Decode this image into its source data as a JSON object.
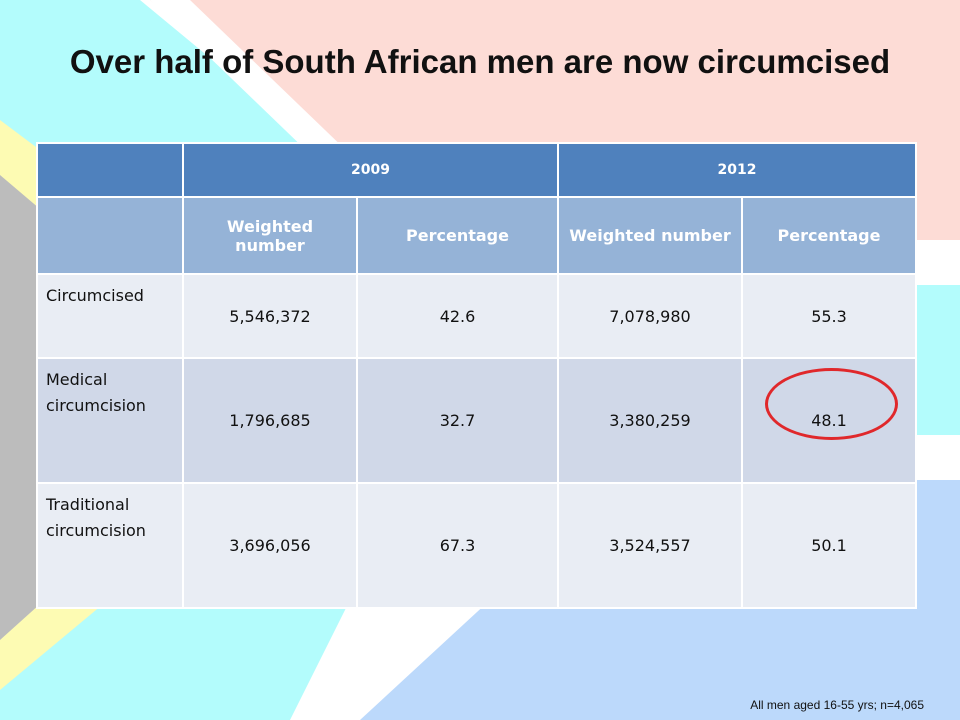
{
  "slide": {
    "title": "Over half of South African men are now circumcised",
    "footnote": "All men aged 16-55 yrs; n=4,065"
  },
  "table": {
    "years": [
      "2009",
      "2012"
    ],
    "subheaders": [
      "Weighted number",
      "Percentage",
      "Weighted number",
      "Percentage"
    ],
    "rows": [
      {
        "label": "Circumcised",
        "values": [
          "5,546,372",
          "42.6",
          "7,078,980",
          "55.3"
        ]
      },
      {
        "label": "Medical circumcision",
        "values": [
          "1,796,685",
          "32.7",
          "3,380,259",
          "48.1"
        ]
      },
      {
        "label": "Traditional circumcision",
        "values": [
          "3,696,056",
          "67.3",
          "3,524,557",
          "50.1"
        ]
      }
    ],
    "highlighted_cell": {
      "row": 1,
      "column": 3,
      "color": "#e0282b"
    }
  },
  "colors": {
    "header_year": "#4f81bd",
    "header_sub": "#95b3d7",
    "row_light": "#e9edf4",
    "row_dark": "#d0d8e8",
    "bg_pink": "#fddcd6",
    "bg_cyan": "#b3fcfc",
    "bg_blue": "#bcd9fb",
    "bg_yellow": "#fdfbb3",
    "bg_gray": "#bcbcbc"
  }
}
